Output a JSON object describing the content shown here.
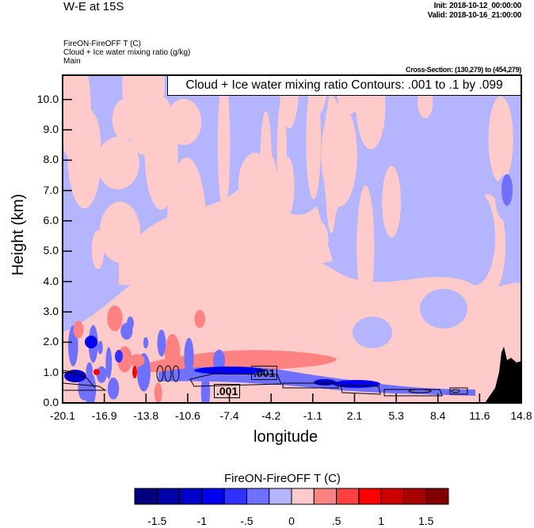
{
  "header": {
    "title": "W-E at 15S",
    "init": "Init: 2018-10-12_00:00:00",
    "valid": "Valid: 2018-10-16_21:00:00",
    "field1": "FireON-FireOFF T   (C)",
    "field2": "Cloud + Ice water mixing ratio   (g/kg)",
    "field3": "Main",
    "cross_section": "Cross-Section: (130,279) to (454,279)"
  },
  "chart_data": {
    "type": "heatmap",
    "title": "W-E at 15S",
    "xlabel": "longitude",
    "ylabel": "Height (km)",
    "x_ticks": [
      "-20.1",
      "-16.9",
      "-13.8",
      "-10.6",
      "-7.4",
      "-4.2",
      "-1.1",
      "2.1",
      "5.3",
      "8.4",
      "11.6",
      "14.8"
    ],
    "y_ticks": [
      "0.0",
      "1.0",
      "2.0",
      "3.0",
      "4.0",
      "5.0",
      "6.0",
      "7.0",
      "8.0",
      "9.0",
      "10.0"
    ],
    "xlim": [
      -20.1,
      14.8
    ],
    "ylim": [
      0,
      10.8
    ],
    "contour_legend": "Cloud + Ice water mixing ratio Contours: .001 to .1 by .099",
    "contour_labels": [
      ".001",
      ".001"
    ],
    "colorbar": {
      "title": "FireON-FireOFF T  (C)",
      "levels": [
        -1.5,
        -1.25,
        -1,
        -0.75,
        -0.5,
        -0.25,
        0,
        0.25,
        0.5,
        0.75,
        1,
        1.25,
        1.5
      ],
      "labels": [
        "-1.5",
        "-1",
        "-.5",
        "0",
        ".5",
        "1",
        "1.5"
      ],
      "colors": [
        "#000080",
        "#0000a8",
        "#0000cc",
        "#0000f0",
        "#3030ff",
        "#7070ff",
        "#b4b4ff",
        "#ffcaca",
        "#ff8282",
        "#ff4040",
        "#ff0000",
        "#cc0000",
        "#a80000",
        "#800000"
      ]
    }
  }
}
